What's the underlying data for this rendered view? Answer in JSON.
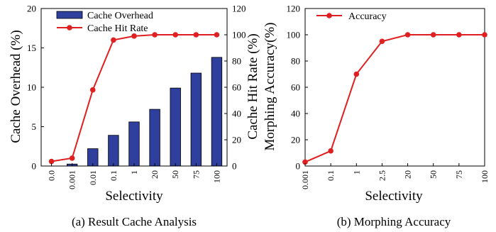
{
  "colors": {
    "bar_fill": "#2f3f9e",
    "bar_stroke": "#000000",
    "line": "#e02020",
    "axis": "#000000"
  },
  "chart_data": [
    {
      "type": "bar",
      "caption": "(a) Result Cache Analysis",
      "categories": [
        "0.0",
        "0.001",
        "0.01",
        "0.1",
        "1",
        "20",
        "50",
        "75",
        "100"
      ],
      "xlabel": "Selectivity",
      "ylabel": "Cache Overhead (%)",
      "ylim": [
        0,
        20
      ],
      "yticks": [
        0,
        5,
        10,
        15,
        20
      ],
      "y2label": "Cache Hit Rate (%)",
      "y2lim": [
        0,
        120
      ],
      "y2ticks": [
        0,
        20,
        40,
        60,
        80,
        100,
        120
      ],
      "legend_position": "top-left",
      "series": [
        {
          "name": "Cache Overhead",
          "kind": "bar",
          "axis": "left",
          "values": [
            0,
            0.25,
            2.2,
            3.9,
            5.6,
            7.2,
            9.9,
            11.8,
            13.8
          ]
        },
        {
          "name": "Cache Hit Rate",
          "kind": "line",
          "axis": "right",
          "values": [
            3.5,
            6,
            58,
            96,
            99,
            100,
            100,
            100,
            100
          ]
        }
      ],
      "grid": false
    },
    {
      "type": "line",
      "caption": "(b) Morphing Accuracy",
      "categories": [
        "0.001",
        "0.1",
        "1",
        "2.5",
        "20",
        "50",
        "75",
        "100"
      ],
      "xlabel": "Selectivity",
      "ylabel": "Morphing Accuracy(%)",
      "ylim": [
        0,
        120
      ],
      "yticks": [
        0,
        20,
        40,
        60,
        80,
        100,
        120
      ],
      "legend_position": "top-left",
      "series": [
        {
          "name": "Accuracy",
          "values": [
            3,
            11.5,
            70,
            95,
            100,
            100,
            100,
            100
          ]
        }
      ],
      "grid": false
    }
  ]
}
